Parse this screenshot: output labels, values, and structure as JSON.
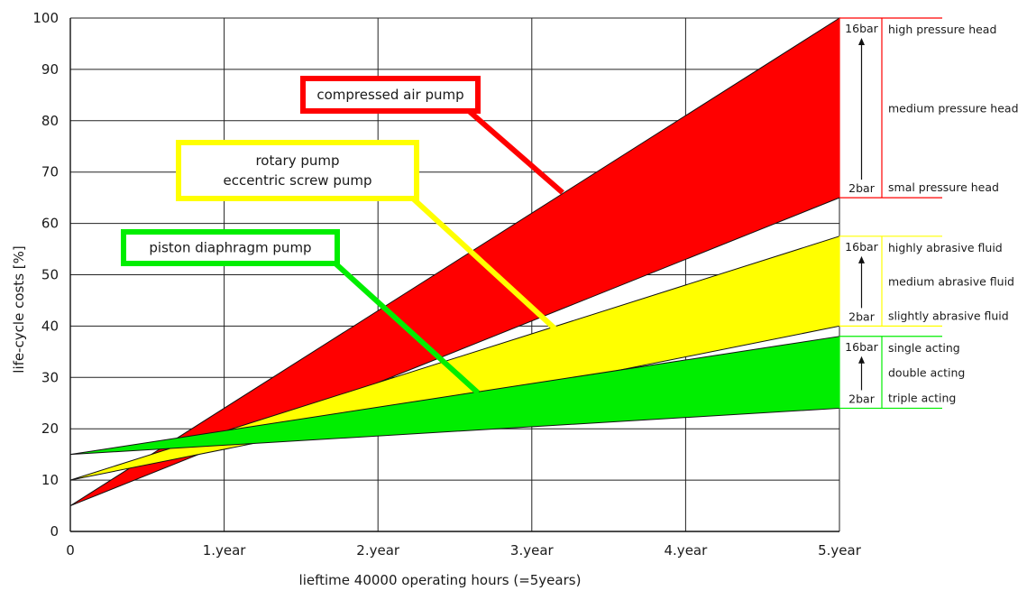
{
  "chart_data": {
    "type": "area",
    "xlabel": "lieftime 40000 operating hours (=5years)",
    "ylabel": "life-cycle costs [%]",
    "xlim": [
      0,
      5
    ],
    "ylim": [
      0,
      100
    ],
    "grid": true,
    "x_ticks": [
      {
        "value": 0,
        "label": "0"
      },
      {
        "value": 1,
        "label": "1.year"
      },
      {
        "value": 2,
        "label": "2.year"
      },
      {
        "value": 3,
        "label": "3.year"
      },
      {
        "value": 4,
        "label": "4.year"
      },
      {
        "value": 5,
        "label": "5.year"
      }
    ],
    "y_ticks": [
      0,
      10,
      20,
      30,
      40,
      50,
      60,
      70,
      80,
      90,
      100
    ],
    "series": [
      {
        "name": "compressed air pump",
        "color": "#ff0000",
        "x": [
          0,
          5
        ],
        "lower": [
          5,
          65
        ],
        "upper": [
          5,
          100
        ]
      },
      {
        "name": "rotary pump eccentric screw pump",
        "color": "#ffff00",
        "x": [
          0,
          5
        ],
        "lower": [
          10,
          40
        ],
        "upper": [
          10,
          57.5
        ]
      },
      {
        "name": "piston diaphragm pump",
        "color": "#00ee00",
        "x": [
          0,
          5
        ],
        "lower": [
          15,
          24
        ],
        "upper": [
          15,
          38
        ]
      }
    ],
    "callouts": [
      {
        "lines": [
          "compressed air pump"
        ],
        "color": "#ff0000",
        "target": [
          3.2,
          66
        ]
      },
      {
        "lines": [
          "rotary pump",
          "eccentric screw pump"
        ],
        "color": "#ffff00",
        "target": [
          3.15,
          39.5
        ]
      },
      {
        "lines": [
          "piston diaphragm pump"
        ],
        "color": "#00ee00",
        "target": [
          2.65,
          27
        ]
      }
    ],
    "side_legends": [
      {
        "color": "#ff0000",
        "range": [
          65,
          100
        ],
        "top_value": "16bar",
        "bottom_value": "2bar",
        "labels": [
          "high pressure head",
          "medium pressure head",
          "smal pressure head"
        ]
      },
      {
        "color": "#ffff00",
        "range": [
          40,
          57.5
        ],
        "top_value": "16bar",
        "bottom_value": "2bar",
        "labels": [
          "highly abrasive fluid",
          "medium abrasive fluid",
          "slightly abrasive fluid"
        ]
      },
      {
        "color": "#00ee00",
        "range": [
          24,
          38
        ],
        "top_value": "16bar",
        "bottom_value": "2bar",
        "labels": [
          "single acting",
          "double acting",
          "triple acting"
        ]
      }
    ]
  }
}
